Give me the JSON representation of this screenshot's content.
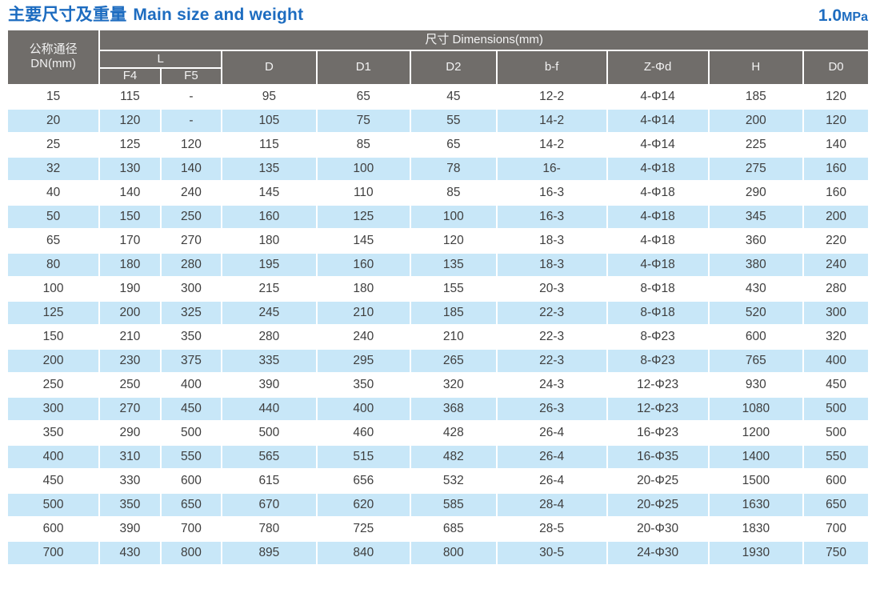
{
  "page": {
    "title_zh": "主要尺寸及重量",
    "title_en": "Main size and weight",
    "pressure_value": "1.0",
    "pressure_unit": "MPa"
  },
  "colors": {
    "title_blue": "#1d6cc0",
    "header_gray": "#706d6a",
    "row_blue": "#c8e7f8",
    "body_text": "#3e3e3e",
    "header_text": "#f2f2f2"
  },
  "table": {
    "header": {
      "col_dn_line1": "公称通径",
      "col_dn_line2": "DN(mm)",
      "dimensions_label": "尺寸 Dimensions(mm)",
      "l_label": "L",
      "sub_labels": [
        "F4",
        "F5",
        "D",
        "D1",
        "D2",
        "b-f",
        "Z-Φd",
        "H",
        "D0"
      ]
    },
    "rows": [
      [
        "15",
        "115",
        "-",
        "95",
        "65",
        "45",
        "12-2",
        "4-Φ14",
        "185",
        "120"
      ],
      [
        "20",
        "120",
        "-",
        "105",
        "75",
        "55",
        "14-2",
        "4-Φ14",
        "200",
        "120"
      ],
      [
        "25",
        "125",
        "120",
        "115",
        "85",
        "65",
        "14-2",
        "4-Φ14",
        "225",
        "140"
      ],
      [
        "32",
        "130",
        "140",
        "135",
        "100",
        "78",
        "16-",
        "4-Φ18",
        "275",
        "160"
      ],
      [
        "40",
        "140",
        "240",
        "145",
        "110",
        "85",
        "16-3",
        "4-Φ18",
        "290",
        "160"
      ],
      [
        "50",
        "150",
        "250",
        "160",
        "125",
        "100",
        "16-3",
        "4-Φ18",
        "345",
        "200"
      ],
      [
        "65",
        "170",
        "270",
        "180",
        "145",
        "120",
        "18-3",
        "4-Φ18",
        "360",
        "220"
      ],
      [
        "80",
        "180",
        "280",
        "195",
        "160",
        "135",
        "18-3",
        "4-Φ18",
        "380",
        "240"
      ],
      [
        "100",
        "190",
        "300",
        "215",
        "180",
        "155",
        "20-3",
        "8-Φ18",
        "430",
        "280"
      ],
      [
        "125",
        "200",
        "325",
        "245",
        "210",
        "185",
        "22-3",
        "8-Φ18",
        "520",
        "300"
      ],
      [
        "150",
        "210",
        "350",
        "280",
        "240",
        "210",
        "22-3",
        "8-Φ23",
        "600",
        "320"
      ],
      [
        "200",
        "230",
        "375",
        "335",
        "295",
        "265",
        "22-3",
        "8-Φ23",
        "765",
        "400"
      ],
      [
        "250",
        "250",
        "400",
        "390",
        "350",
        "320",
        "24-3",
        "12-Φ23",
        "930",
        "450"
      ],
      [
        "300",
        "270",
        "450",
        "440",
        "400",
        "368",
        "26-3",
        "12-Φ23",
        "1080",
        "500"
      ],
      [
        "350",
        "290",
        "500",
        "500",
        "460",
        "428",
        "26-4",
        "16-Φ23",
        "1200",
        "500"
      ],
      [
        "400",
        "310",
        "550",
        "565",
        "515",
        "482",
        "26-4",
        "16-Φ35",
        "1400",
        "550"
      ],
      [
        "450",
        "330",
        "600",
        "615",
        "656",
        "532",
        "26-4",
        "20-Φ25",
        "1500",
        "600"
      ],
      [
        "500",
        "350",
        "650",
        "670",
        "620",
        "585",
        "28-4",
        "20-Φ25",
        "1630",
        "650"
      ],
      [
        "600",
        "390",
        "700",
        "780",
        "725",
        "685",
        "28-5",
        "20-Φ30",
        "1830",
        "700"
      ],
      [
        "700",
        "430",
        "800",
        "895",
        "840",
        "800",
        "30-5",
        "24-Φ30",
        "1930",
        "750"
      ]
    ]
  }
}
